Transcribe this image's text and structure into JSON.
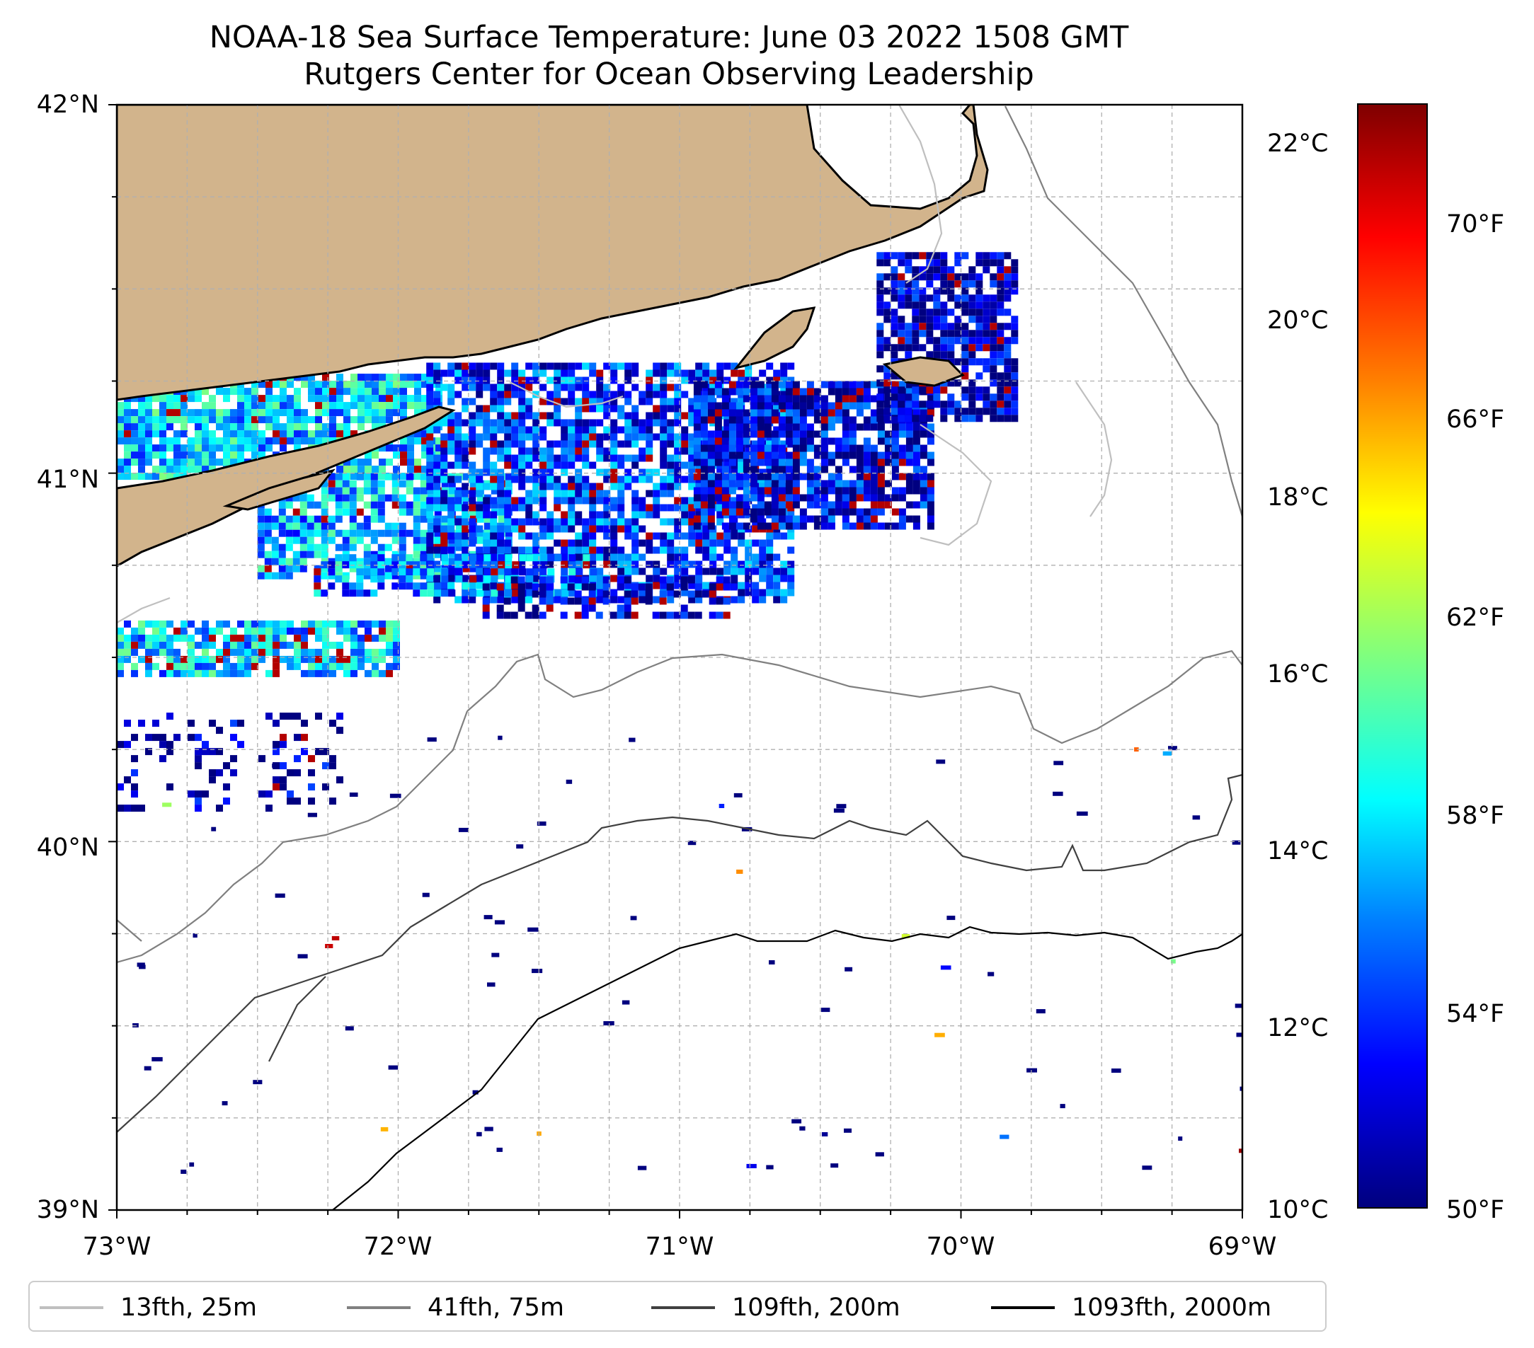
{
  "title": {
    "line1": "NOAA-18 Sea Surface Temperature: June 03 2022 1508 GMT",
    "line2": "Rutgers Center for Ocean Observing Leadership"
  },
  "map": {
    "lon_range": [
      -73,
      -69
    ],
    "lat_range": [
      39,
      42
    ],
    "lat_labels": [
      "42°N",
      "41°N",
      "40°N",
      "39°N"
    ],
    "lon_labels": [
      "73°W",
      "72°W",
      "71°W",
      "70°W",
      "69°W"
    ],
    "land_color": "#d2b48c",
    "gridlines": true
  },
  "colorbar": {
    "celsius_labels": [
      "22°C",
      "20°C",
      "18°C",
      "16°C",
      "14°C",
      "12°C",
      "10°C"
    ],
    "fahrenheit_labels": [
      "70°F",
      "66°F",
      "62°F",
      "58°F",
      "54°F",
      "50°F"
    ],
    "colormap": "jet",
    "range_celsius": [
      10,
      22.5
    ]
  },
  "legend": {
    "items": [
      {
        "label": "13fth, 25m",
        "color": "#bfbfbf"
      },
      {
        "label": "41fth, 75m",
        "color": "#808080"
      },
      {
        "label": "109fth, 200m",
        "color": "#404040"
      },
      {
        "label": "1093fth, 2000m",
        "color": "#000000"
      }
    ]
  }
}
